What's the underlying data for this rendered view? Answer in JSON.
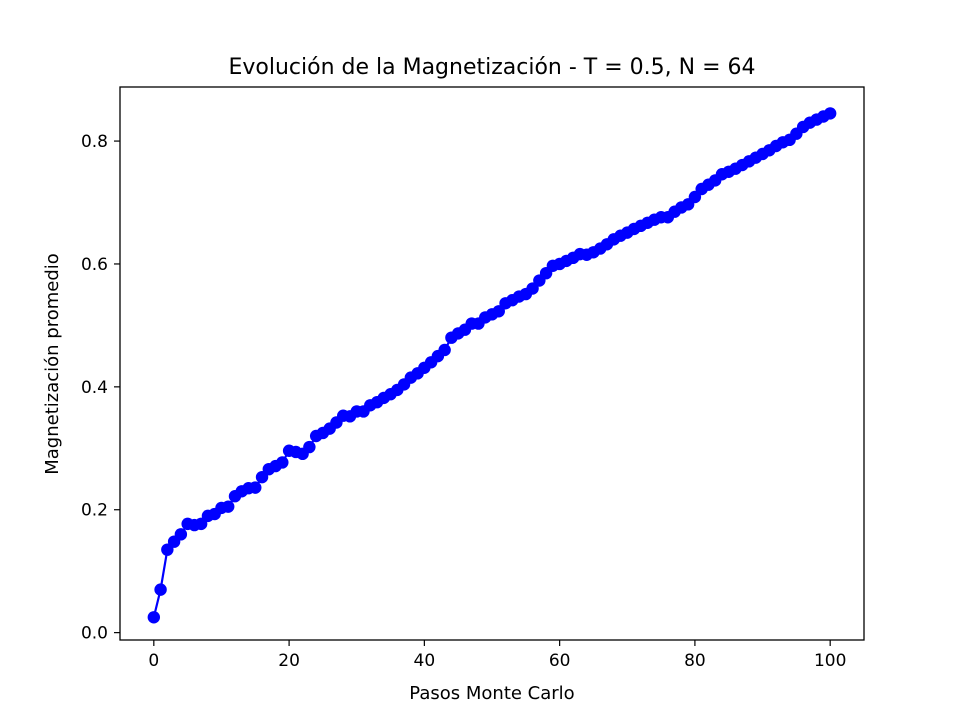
{
  "chart_data": {
    "type": "line",
    "title": "Evolución de la Magnetización - T = 0.5, N = 64",
    "xlabel": "Pasos Monte Carlo",
    "ylabel": "Magnetización promedio",
    "xlim": [
      -5,
      105
    ],
    "ylim": [
      -0.012,
      0.888
    ],
    "xticks": [
      0,
      20,
      40,
      60,
      80,
      100
    ],
    "xtick_labels": [
      "0",
      "20",
      "40",
      "60",
      "80",
      "100"
    ],
    "yticks": [
      0.0,
      0.2,
      0.4,
      0.6,
      0.8
    ],
    "ytick_labels": [
      "0.0",
      "0.2",
      "0.4",
      "0.6",
      "0.8"
    ],
    "grid": false,
    "series": [
      {
        "color": "#0000ff",
        "marker": "circle",
        "x": [
          0,
          1,
          2,
          3,
          4,
          5,
          6,
          7,
          8,
          9,
          10,
          11,
          12,
          13,
          14,
          15,
          16,
          17,
          18,
          19,
          20,
          21,
          22,
          23,
          24,
          25,
          26,
          27,
          28,
          29,
          30,
          31,
          32,
          33,
          34,
          35,
          36,
          37,
          38,
          39,
          40,
          41,
          42,
          43,
          44,
          45,
          46,
          47,
          48,
          49,
          50,
          51,
          52,
          53,
          54,
          55,
          56,
          57,
          58,
          59,
          60,
          61,
          62,
          63,
          64,
          65,
          66,
          67,
          68,
          69,
          70,
          71,
          72,
          73,
          74,
          75,
          76,
          77,
          78,
          79,
          80,
          81,
          82,
          83,
          84,
          85,
          86,
          87,
          88,
          89,
          90,
          91,
          92,
          93,
          94,
          95,
          96,
          97,
          98,
          99,
          100
        ],
        "y": [
          0.025,
          0.07,
          0.135,
          0.148,
          0.16,
          0.177,
          0.175,
          0.177,
          0.19,
          0.193,
          0.203,
          0.205,
          0.222,
          0.23,
          0.235,
          0.236,
          0.253,
          0.266,
          0.271,
          0.277,
          0.296,
          0.294,
          0.291,
          0.302,
          0.32,
          0.325,
          0.332,
          0.342,
          0.353,
          0.352,
          0.36,
          0.36,
          0.37,
          0.375,
          0.382,
          0.388,
          0.395,
          0.404,
          0.415,
          0.422,
          0.431,
          0.44,
          0.45,
          0.46,
          0.48,
          0.487,
          0.493,
          0.503,
          0.503,
          0.513,
          0.518,
          0.523,
          0.536,
          0.541,
          0.547,
          0.551,
          0.56,
          0.573,
          0.585,
          0.597,
          0.6,
          0.605,
          0.61,
          0.616,
          0.615,
          0.619,
          0.625,
          0.632,
          0.64,
          0.646,
          0.651,
          0.657,
          0.662,
          0.667,
          0.672,
          0.676,
          0.676,
          0.685,
          0.692,
          0.697,
          0.709,
          0.722,
          0.729,
          0.736,
          0.746,
          0.75,
          0.755,
          0.761,
          0.767,
          0.773,
          0.779,
          0.785,
          0.792,
          0.798,
          0.802,
          0.812,
          0.823,
          0.83,
          0.835,
          0.84,
          0.845
        ]
      }
    ]
  }
}
